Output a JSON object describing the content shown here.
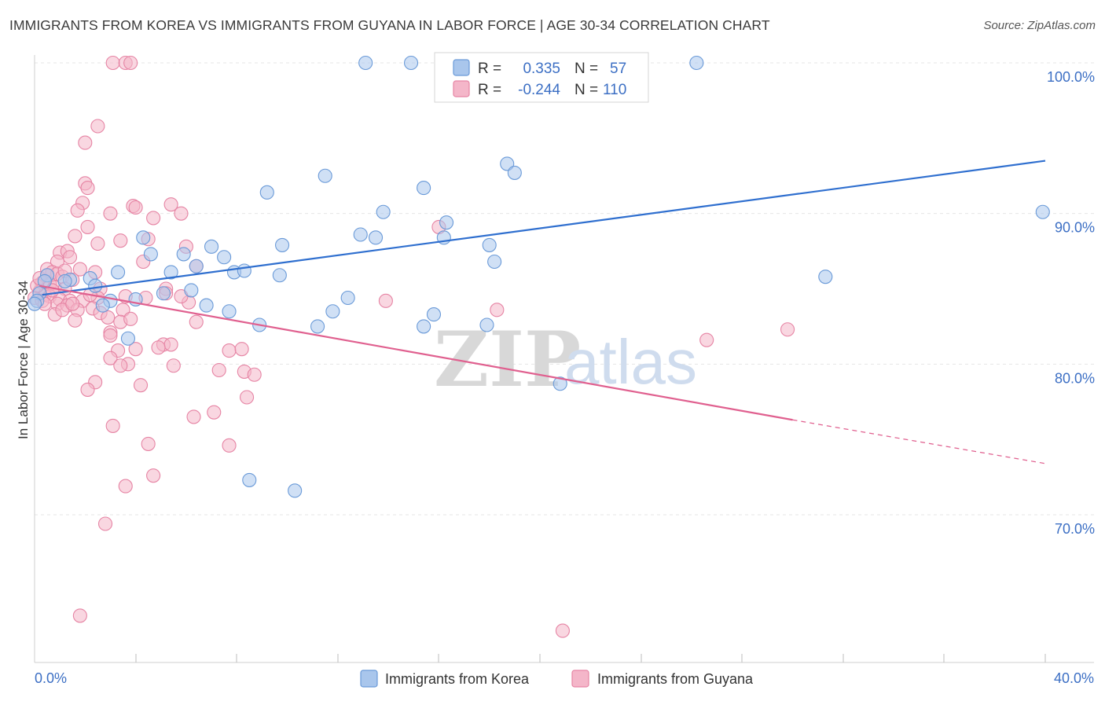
{
  "header": {
    "title": "IMMIGRANTS FROM KOREA VS IMMIGRANTS FROM GUYANA IN LABOR FORCE | AGE 30-34 CORRELATION CHART",
    "source": "Source: ZipAtlas.com"
  },
  "watermark": {
    "zip": "ZIP",
    "atlas": "atlas"
  },
  "legend_box": {
    "rows": [
      {
        "r_label": "R =",
        "r_value": "0.335",
        "n_label": "N =",
        "n_value": "57"
      },
      {
        "r_label": "R =",
        "r_value": "-0.244",
        "n_label": "N =",
        "n_value": "110"
      }
    ]
  },
  "bottom_legend": {
    "korea": "Immigrants from Korea",
    "guyana": "Immigrants from Guyana"
  },
  "colors": {
    "korea_fill": "#a9c6ec",
    "korea_stroke": "#6a9ad8",
    "korea_line": "#2f6fcf",
    "guyana_fill": "#f4b6c9",
    "guyana_stroke": "#e684a4",
    "guyana_line": "#e0608f",
    "axis_tick_text": "#3c6fc4",
    "grid": "#e6e6e6"
  },
  "chart_data": {
    "type": "scatter",
    "title": "IMMIGRANTS FROM KOREA VS IMMIGRANTS FROM GUYANA IN LABOR FORCE | AGE 30-34 CORRELATION CHART",
    "xlabel": "",
    "ylabel": "In Labor Force | Age 30-34",
    "xlim": [
      0,
      40
    ],
    "ylim": [
      61,
      101.5
    ],
    "x_ticks": [
      "0.0%",
      "40.0%"
    ],
    "y_ticks": [
      {
        "value": 100,
        "label": "100.0%"
      },
      {
        "value": 90,
        "label": "90.0%"
      },
      {
        "value": 80,
        "label": "80.0%"
      },
      {
        "value": 70,
        "label": "70.0%"
      }
    ],
    "grid": true,
    "legend_position": "top-center",
    "series": [
      {
        "name": "Immigrants from Korea",
        "R": 0.335,
        "N": 57,
        "trend": {
          "x": [
            0.3,
            40
          ],
          "y": [
            84.6,
            93.5
          ]
        },
        "points": [
          [
            13.1,
            100
          ],
          [
            14.9,
            100
          ],
          [
            19.8,
            100
          ],
          [
            26.2,
            100
          ],
          [
            11.5,
            92.5
          ],
          [
            15.4,
            91.7
          ],
          [
            18.7,
            93.3
          ],
          [
            19.0,
            92.7
          ],
          [
            9.2,
            91.4
          ],
          [
            13.8,
            90.1
          ],
          [
            39.9,
            90.1
          ],
          [
            16.3,
            89.4
          ],
          [
            4.3,
            88.4
          ],
          [
            12.9,
            88.6
          ],
          [
            13.5,
            88.4
          ],
          [
            16.2,
            88.4
          ],
          [
            18.0,
            87.9
          ],
          [
            9.8,
            87.9
          ],
          [
            7.0,
            87.8
          ],
          [
            4.6,
            87.3
          ],
          [
            5.9,
            87.3
          ],
          [
            7.5,
            87.1
          ],
          [
            6.4,
            86.5
          ],
          [
            18.2,
            86.8
          ],
          [
            3.3,
            86.1
          ],
          [
            5.4,
            86.1
          ],
          [
            7.9,
            86.1
          ],
          [
            8.3,
            86.2
          ],
          [
            9.7,
            85.9
          ],
          [
            31.3,
            85.8
          ],
          [
            2.2,
            85.7
          ],
          [
            1.4,
            85.6
          ],
          [
            0.5,
            85.9
          ],
          [
            1.2,
            85.5
          ],
          [
            2.4,
            85.2
          ],
          [
            6.2,
            84.9
          ],
          [
            5.1,
            84.7
          ],
          [
            3.0,
            84.2
          ],
          [
            4.0,
            84.3
          ],
          [
            12.4,
            84.4
          ],
          [
            2.7,
            83.9
          ],
          [
            6.8,
            83.9
          ],
          [
            7.7,
            83.5
          ],
          [
            11.8,
            83.5
          ],
          [
            15.8,
            83.3
          ],
          [
            8.9,
            82.6
          ],
          [
            11.2,
            82.5
          ],
          [
            15.4,
            82.5
          ],
          [
            17.9,
            82.6
          ],
          [
            3.7,
            81.7
          ],
          [
            20.8,
            78.7
          ],
          [
            8.5,
            72.3
          ],
          [
            10.3,
            71.6
          ],
          [
            0.2,
            84.7
          ],
          [
            0.1,
            84.2
          ],
          [
            0.4,
            85.5
          ],
          [
            0.0,
            84.0
          ]
        ]
      },
      {
        "name": "Immigrants from Guyana",
        "R": -0.244,
        "N": 110,
        "trend": {
          "x": [
            0.2,
            30.0
          ],
          "y": [
            85.2,
            76.3
          ]
        },
        "trend_dashed": {
          "x": [
            30.0,
            40.0
          ],
          "y": [
            76.3,
            73.4
          ]
        },
        "points": [
          [
            3.1,
            100
          ],
          [
            3.6,
            100
          ],
          [
            3.8,
            100
          ],
          [
            2.5,
            95.8
          ],
          [
            2.0,
            94.7
          ],
          [
            2.0,
            92.0
          ],
          [
            2.1,
            91.7
          ],
          [
            1.9,
            90.7
          ],
          [
            1.7,
            90.2
          ],
          [
            3.0,
            90.0
          ],
          [
            3.9,
            90.5
          ],
          [
            4.0,
            90.4
          ],
          [
            5.4,
            90.6
          ],
          [
            5.8,
            90.0
          ],
          [
            4.7,
            89.7
          ],
          [
            2.1,
            89.1
          ],
          [
            1.6,
            88.5
          ],
          [
            3.4,
            88.2
          ],
          [
            4.5,
            88.3
          ],
          [
            16.0,
            89.1
          ],
          [
            2.5,
            88.0
          ],
          [
            6.0,
            87.8
          ],
          [
            1.0,
            87.4
          ],
          [
            1.3,
            87.5
          ],
          [
            1.4,
            87.1
          ],
          [
            4.3,
            86.8
          ],
          [
            0.9,
            86.8
          ],
          [
            0.5,
            86.3
          ],
          [
            1.8,
            86.3
          ],
          [
            0.7,
            86.1
          ],
          [
            0.9,
            86.0
          ],
          [
            1.1,
            85.8
          ],
          [
            1.5,
            85.6
          ],
          [
            0.3,
            85.4
          ],
          [
            0.6,
            85.3
          ],
          [
            0.8,
            85.1
          ],
          [
            1.2,
            85.0
          ],
          [
            2.6,
            85.0
          ],
          [
            5.2,
            85.0
          ],
          [
            6.4,
            86.5
          ],
          [
            0.2,
            84.8
          ],
          [
            0.4,
            84.6
          ],
          [
            0.6,
            84.5
          ],
          [
            1.0,
            84.3
          ],
          [
            1.4,
            84.2
          ],
          [
            1.9,
            84.2
          ],
          [
            2.5,
            84.4
          ],
          [
            3.6,
            84.5
          ],
          [
            5.2,
            84.7
          ],
          [
            0.9,
            84.0
          ],
          [
            1.3,
            83.9
          ],
          [
            1.7,
            83.6
          ],
          [
            2.3,
            83.7
          ],
          [
            2.6,
            83.4
          ],
          [
            0.8,
            83.3
          ],
          [
            1.1,
            83.6
          ],
          [
            3.5,
            83.6
          ],
          [
            1.6,
            82.9
          ],
          [
            3.4,
            82.8
          ],
          [
            6.4,
            82.8
          ],
          [
            13.9,
            84.2
          ],
          [
            18.3,
            83.6
          ],
          [
            29.8,
            82.3
          ],
          [
            26.6,
            81.6
          ],
          [
            3.0,
            82.1
          ],
          [
            3.0,
            81.9
          ],
          [
            5.1,
            81.3
          ],
          [
            5.4,
            81.3
          ],
          [
            4.0,
            81.0
          ],
          [
            3.3,
            80.9
          ],
          [
            7.7,
            80.9
          ],
          [
            8.2,
            81.0
          ],
          [
            4.9,
            81.1
          ],
          [
            3.0,
            80.4
          ],
          [
            3.7,
            80.0
          ],
          [
            3.4,
            79.9
          ],
          [
            5.5,
            79.9
          ],
          [
            7.3,
            79.6
          ],
          [
            8.3,
            79.5
          ],
          [
            8.7,
            79.3
          ],
          [
            2.4,
            78.8
          ],
          [
            2.1,
            78.3
          ],
          [
            4.2,
            78.6
          ],
          [
            8.4,
            77.8
          ],
          [
            7.1,
            76.8
          ],
          [
            6.3,
            76.5
          ],
          [
            3.1,
            75.9
          ],
          [
            4.5,
            74.7
          ],
          [
            7.7,
            74.6
          ],
          [
            4.7,
            72.6
          ],
          [
            3.6,
            71.9
          ],
          [
            2.8,
            69.4
          ],
          [
            1.8,
            63.3
          ],
          [
            20.9,
            62.3
          ],
          [
            0.0,
            84.4
          ],
          [
            0.1,
            85.2
          ],
          [
            0.2,
            85.7
          ],
          [
            0.3,
            84.2
          ],
          [
            0.5,
            85.9
          ],
          [
            0.7,
            84.9
          ],
          [
            1.5,
            84.0
          ],
          [
            2.2,
            84.6
          ],
          [
            2.9,
            83.1
          ],
          [
            4.4,
            84.4
          ],
          [
            6.1,
            84.1
          ],
          [
            0.4,
            84.0
          ],
          [
            1.2,
            86.2
          ],
          [
            2.4,
            86.1
          ],
          [
            3.8,
            83.0
          ],
          [
            5.8,
            84.5
          ]
        ]
      }
    ]
  }
}
